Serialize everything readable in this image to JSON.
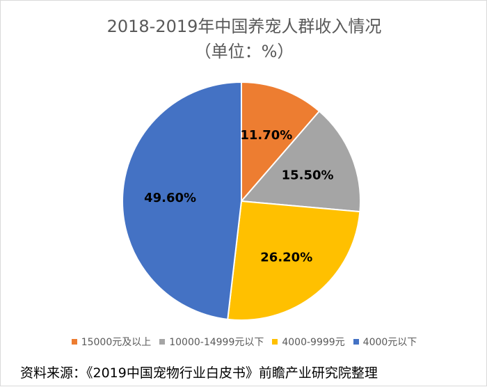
{
  "chart_data": {
    "type": "pie",
    "title": "2018-2019年中国养宠人群收入情况",
    "subtitle": "（单位：%）",
    "slices": [
      {
        "label": "15000元及以上",
        "value": 11.7,
        "display": "11.70%",
        "color": "#ed7d31"
      },
      {
        "label": "10000-14999元以下",
        "value": 15.5,
        "display": "15.50%",
        "color": "#a5a5a5"
      },
      {
        "label": "4000-9999元",
        "value": 26.2,
        "display": "26.20%",
        "color": "#ffc000"
      },
      {
        "label": "4000元以下",
        "value": 49.6,
        "display": "49.60%",
        "color": "#4472c4"
      }
    ],
    "legend_position": "bottom"
  },
  "source": "资料来源：《2019中国宠物行业白皮书》前瞻产业研究院整理"
}
